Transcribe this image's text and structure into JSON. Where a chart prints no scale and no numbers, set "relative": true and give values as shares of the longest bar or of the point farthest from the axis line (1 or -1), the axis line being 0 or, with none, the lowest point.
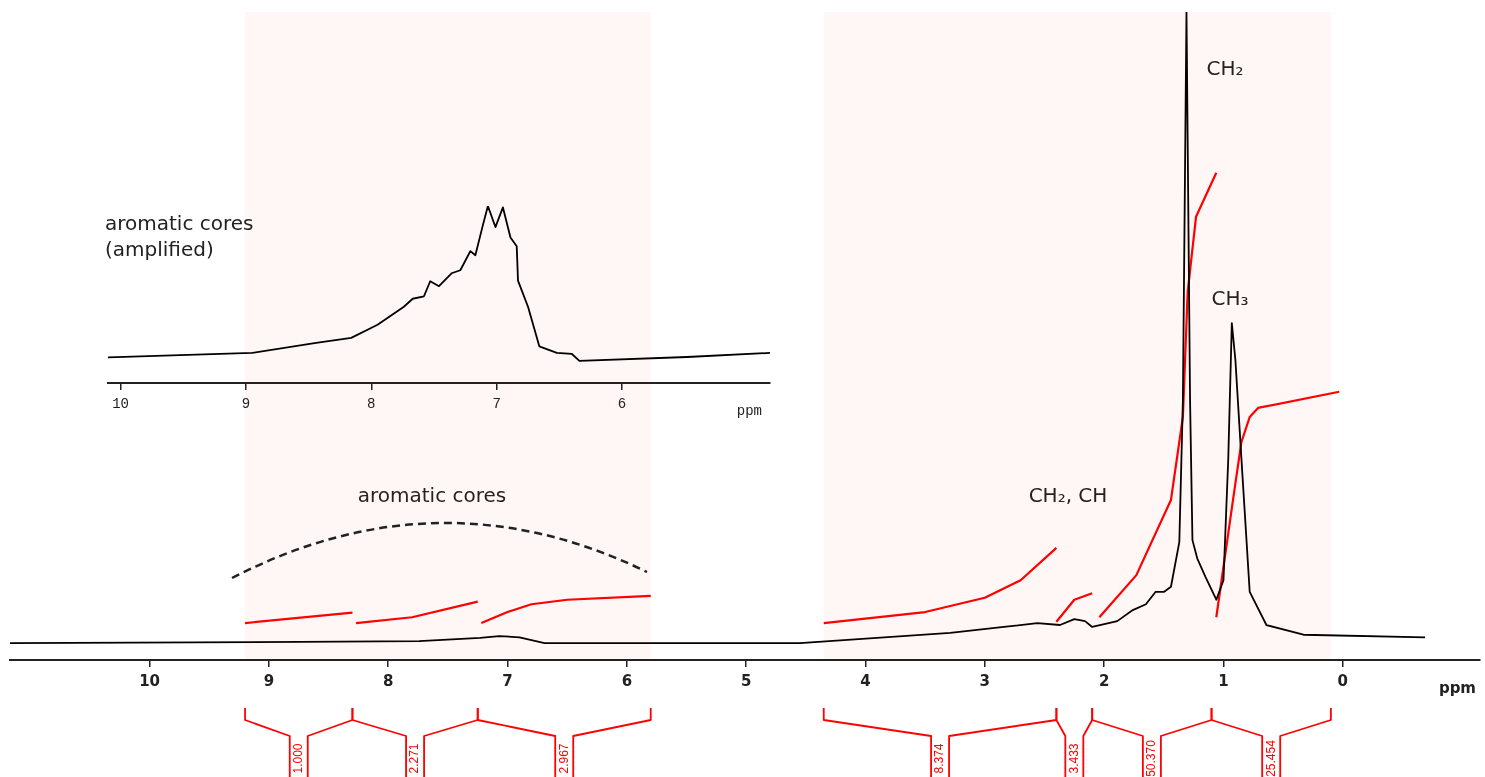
{
  "chart_data": [
    {
      "type": "line",
      "title": "aromatic cores (amplified)",
      "xlabel": "ppm",
      "relative": true,
      "series": [
        {
          "color": "#000000",
          "x": [
            10.1,
            8.95,
            8.44,
            8.16,
            7.95,
            7.74,
            7.67,
            7.58,
            7.53,
            7.46,
            7.36,
            7.29,
            7.21,
            7.17,
            7.11,
            7.07,
            7.01,
            6.95,
            6.89,
            6.84,
            6.83,
            6.75,
            6.66,
            6.52,
            6.4,
            6.34,
            5.48,
            4.82
          ],
          "values": [
            0.145,
            0.17,
            0.227,
            0.255,
            0.329,
            0.431,
            0.476,
            0.49,
            0.575,
            0.547,
            0.62,
            0.637,
            0.745,
            0.722,
            0.892,
            1,
            0.881,
            0.992,
            0.822,
            0.773,
            0.578,
            0.431,
            0.207,
            0.17,
            0.164,
            0.125,
            0.147,
            0.17
          ]
        }
      ],
      "xlim": [
        10.1,
        4.82
      ],
      "xticks": [
        10,
        9,
        8,
        7,
        6
      ]
    },
    {
      "type": "line",
      "xlabel": "ppm",
      "relative": true,
      "series": [
        {
          "color": "#000000",
          "x": [
            11.17,
            8.74,
            7.74,
            7.23,
            7.07,
            6.9,
            6.69,
            4.55,
            3.29,
            2.84,
            2.56,
            2.37,
            2.25,
            2.16,
            2.1,
            1.89,
            1.76,
            1.65,
            1.57,
            1.5,
            1.44,
            1.37,
            1.34,
            1.31,
            1.28,
            1.26,
            1.22,
            1.15,
            1.06,
            1.0,
            0.96,
            0.93,
            0.9,
            0.85,
            0.78,
            0.64,
            0.33,
            -0.69
          ],
          "values": [
            0.026,
            0.028,
            0.029,
            0.034,
            0.037,
            0.035,
            0.026,
            0.026,
            0.042,
            0.051,
            0.057,
            0.054,
            0.063,
            0.06,
            0.051,
            0.06,
            0.077,
            0.086,
            0.105,
            0.105,
            0.113,
            0.182,
            0.401,
            1,
            0.401,
            0.185,
            0.157,
            0.128,
            0.093,
            0.123,
            0.309,
            0.52,
            0.463,
            0.312,
            0.105,
            0.054,
            0.039,
            0.035
          ]
        },
        {
          "color": "#ff0000",
          "x": [
            9.2,
            8.3
          ],
          "values": [
            0.057,
            0.073
          ]
        },
        {
          "color": "#ff0000",
          "x": [
            8.27,
            7.8,
            7.25
          ],
          "values": [
            0.057,
            0.066,
            0.09
          ]
        },
        {
          "color": "#ff0000",
          "x": [
            7.22,
            7.0,
            6.8,
            6.5,
            5.8
          ],
          "values": [
            0.057,
            0.074,
            0.086,
            0.093,
            0.099
          ]
        },
        {
          "color": "#ff0000",
          "x": [
            4.35,
            3.5,
            3.0,
            2.7,
            2.4
          ],
          "values": [
            0.057,
            0.074,
            0.096,
            0.123,
            0.173
          ]
        },
        {
          "color": "#ff0000",
          "x": [
            2.4,
            2.25,
            2.1
          ],
          "values": [
            0.059,
            0.093,
            0.103
          ]
        },
        {
          "color": "#ff0000",
          "x": [
            2.04,
            1.73,
            1.44,
            1.34,
            1.3,
            1.23,
            1.06
          ],
          "values": [
            0.066,
            0.131,
            0.247,
            0.375,
            0.568,
            0.684,
            0.752
          ]
        },
        {
          "color": "#ff0000",
          "x": [
            1.06,
            0.92,
            0.85,
            0.78,
            0.71,
            0.03
          ],
          "values": [
            0.066,
            0.247,
            0.336,
            0.375,
            0.389,
            0.414
          ]
        }
      ],
      "xlim": [
        11.17,
        -1.15
      ],
      "xticks": [
        10,
        9,
        8,
        7,
        6,
        5,
        4,
        3,
        2,
        1,
        0
      ],
      "annotations": [
        "CH₂",
        "CH₃",
        "CH₂, CH",
        "aromatic cores"
      ],
      "bands": [
        {
          "axis": "x",
          "from": 9.2,
          "to": 8.3,
          "label": "1.000",
          "color": "#ff0000"
        },
        {
          "axis": "x",
          "from": 8.3,
          "to": 7.25,
          "label": "2.271",
          "color": "#ff0000"
        },
        {
          "axis": "x",
          "from": 7.25,
          "to": 5.8,
          "label": "2.967",
          "color": "#ff0000"
        },
        {
          "axis": "x",
          "from": 4.35,
          "to": 2.4,
          "label": "8.374",
          "color": "#ff0000"
        },
        {
          "axis": "x",
          "from": 2.4,
          "to": 2.1,
          "label": "3.433",
          "color": "#ff0000"
        },
        {
          "axis": "x",
          "from": 2.1,
          "to": 1.1,
          "label": "50.370",
          "color": "#ff0000"
        },
        {
          "axis": "x",
          "from": 1.1,
          "to": 0.1,
          "label": "25.454",
          "color": "#ff0000"
        }
      ]
    }
  ]
}
